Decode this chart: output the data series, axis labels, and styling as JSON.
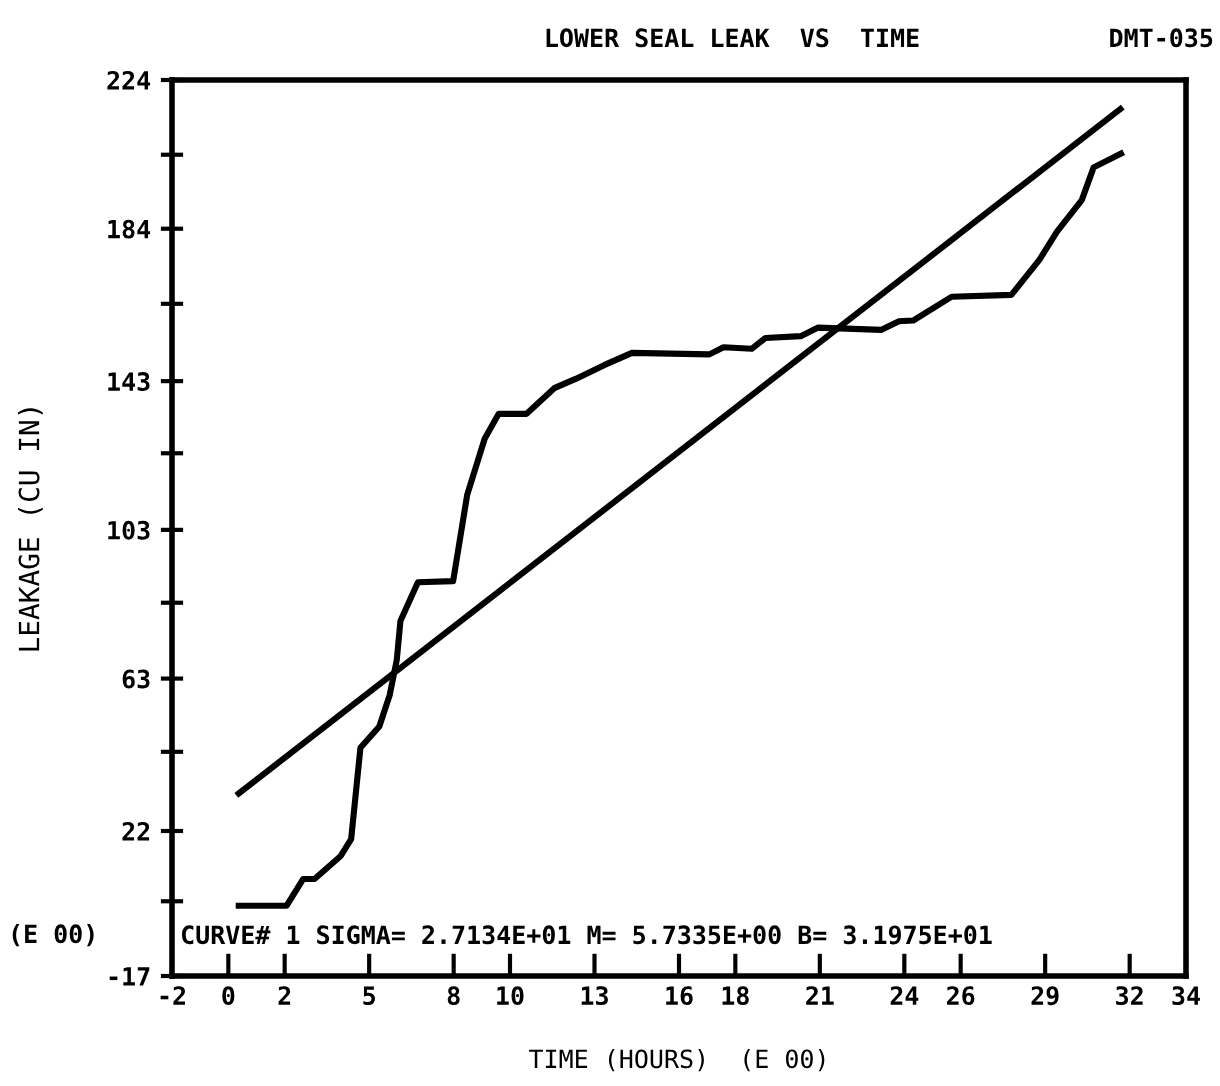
{
  "chart_data": {
    "type": "line",
    "title": "LOWER SEAL LEAK  VS  TIME",
    "xlabel": "TIME (HOURS)  (E 00)",
    "ylabel": "LEAKAGE (CU IN)",
    "annotations": [
      "DMT-035",
      "(E 00)",
      "CURVE# 1 SIGMA= 2.7134E+01 M= 5.7335E+00 B= 3.1975E+01"
    ],
    "series": [
      {
        "color": "#000000",
        "x": [
          0.37,
          2.07,
          2.66,
          3.06,
          3.98,
          4.36,
          4.69,
          5.36,
          5.73,
          5.98,
          6.11,
          6.73,
          7.98,
          8.48,
          9.1,
          9.6,
          10.59,
          11.59,
          12.33,
          13.34,
          14.33,
          17.08,
          17.58,
          18.58,
          19.07,
          20.32,
          20.94,
          23.19,
          23.81,
          24.31,
          25.68,
          27.8,
          28.8,
          29.42,
          30.3,
          30.72,
          31.69
        ],
        "values": [
          1.9,
          1.9,
          9.1,
          9.1,
          15.2,
          19.8,
          44.4,
          50.1,
          58.6,
          68,
          78.5,
          88.9,
          89.2,
          112.4,
          127.5,
          134.2,
          134.2,
          141.2,
          143.6,
          147.3,
          150.6,
          150.2,
          152.1,
          151.7,
          154.6,
          155.1,
          157.4,
          156.8,
          159.1,
          159.3,
          165.7,
          166.2,
          175.7,
          183.2,
          191.7,
          200.5,
          204.2
        ]
      },
      {
        "color": "#000000",
        "x": [
          0.37,
          31.67
        ],
        "values": [
          32.1,
          216.2
        ]
      }
    ],
    "xlim": [
      -2,
      34
    ],
    "xticks": [
      -2,
      0,
      2,
      5,
      8,
      10,
      13,
      16,
      18,
      21,
      24,
      26,
      29,
      32,
      34
    ],
    "ylim": [
      -17,
      224
    ],
    "yticks": [
      -17,
      {
        "value": 3.1,
        "label": null
      },
      22,
      {
        "value": 43.3,
        "label": null
      },
      63,
      {
        "value": 83.4,
        "label": null
      },
      103,
      {
        "value": 123.6,
        "label": null
      },
      143,
      {
        "value": 163.8,
        "label": null
      },
      184,
      {
        "value": 203.9,
        "label": null
      },
      224
    ],
    "grid": false,
    "legend": false,
    "marker": "none",
    "line_style": "solid"
  }
}
